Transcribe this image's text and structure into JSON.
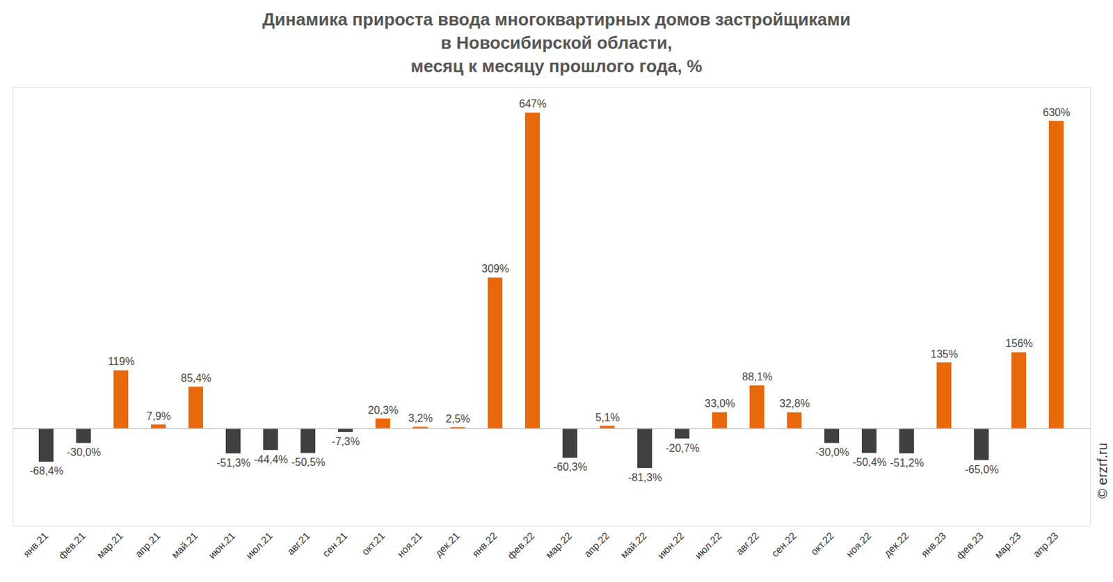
{
  "chart_data": {
    "type": "bar",
    "title": "Динамика прироста ввода многоквартирных домов застройщиками\nв Новосибирской области,\nмесяц к месяцу прошлого года, %",
    "source": "© erzrf.ru",
    "categories": [
      "янв.21",
      "фев.21",
      "мар.21",
      "апр.21",
      "май.21",
      "июн.21",
      "июл.21",
      "авг.21",
      "сен.21",
      "окт.21",
      "ноя.21",
      "дек.21",
      "янв.22",
      "фев.22",
      "мар.22",
      "апр.22",
      "май.22",
      "июн.22",
      "июл.22",
      "авг.22",
      "сен.22",
      "окт.22",
      "ноя.22",
      "дек.22",
      "янв.23",
      "фев.23",
      "мар.23",
      "апр.23"
    ],
    "values": [
      -68.4,
      -30.0,
      119,
      7.9,
      85.4,
      -51.3,
      -44.4,
      -50.5,
      -7.3,
      20.3,
      3.2,
      2.5,
      309,
      647,
      -60.3,
      5.1,
      -81.3,
      -20.7,
      33.0,
      88.1,
      32.8,
      -30.0,
      -50.4,
      -51.2,
      135,
      -65.0,
      156,
      630
    ],
    "value_labels": [
      "-68,4%",
      "-30,0%",
      "119%",
      "7,9%",
      "85,4%",
      "-51,3%",
      "-44,4%",
      "-50,5%",
      "-7,3%",
      "20,3%",
      "3,2%",
      "2,5%",
      "309%",
      "647%",
      "-60,3%",
      "5,1%",
      "-81,3%",
      "-20,7%",
      "33,0%",
      "88,1%",
      "32,8%",
      "-30,0%",
      "-50,4%",
      "-51,2%",
      "135%",
      "-65,0%",
      "156%",
      "630%"
    ],
    "colors": [
      "#404040",
      "#404040",
      "#e8690b",
      "#e8690b",
      "#e8690b",
      "#404040",
      "#404040",
      "#404040",
      "#404040",
      "#e8690b",
      "#e8690b",
      "#e8690b",
      "#e8690b",
      "#e8690b",
      "#404040",
      "#e8690b",
      "#404040",
      "#404040",
      "#e8690b",
      "#e8690b",
      "#e8690b",
      "#404040",
      "#404040",
      "#404040",
      "#e8690b",
      "#404040",
      "#e8690b",
      "#e8690b"
    ],
    "ylim": [
      -200,
      700
    ],
    "yticks": [],
    "grid": false,
    "data_labels": true,
    "tick_labels": "x"
  }
}
